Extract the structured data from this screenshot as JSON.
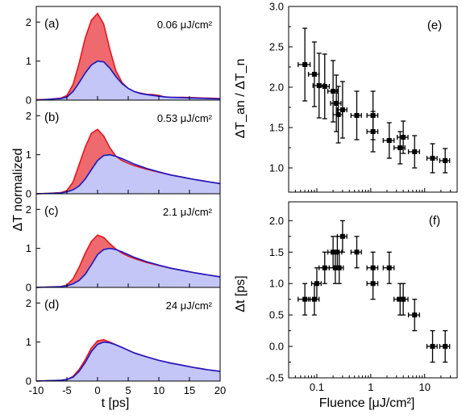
{
  "figure": {
    "left_xlabel": "t [ps]",
    "left_ylabel": "ΔT normalized",
    "right_xlabel": "Fluence [μJ/cm²]",
    "e_ylabel": "ΔT_an / ΔT_n",
    "f_ylabel": "Δt [ps]"
  },
  "colors": {
    "red_line": "#e8141b",
    "red_fill": "#ee6a6e",
    "blue_line": "#1a17c8",
    "blue_fill": "#c3c6f6"
  },
  "chart_data": [
    {
      "type": "area",
      "panel": "(a)",
      "label": "0.06 μJ/cm²",
      "xlim": [
        -10,
        20
      ],
      "ylim": [
        0,
        2.4
      ],
      "xticks": [
        -10,
        -5,
        0,
        5,
        10,
        15,
        20
      ],
      "yticks": [
        0,
        1,
        2
      ],
      "x": [
        -10,
        -8,
        -6,
        -5,
        -4,
        -3,
        -2,
        -1,
        0,
        1,
        2,
        3,
        4,
        5,
        6,
        7,
        8,
        9,
        10,
        11,
        12,
        14,
        16,
        18,
        20
      ],
      "series": [
        {
          "name": "",
          "color": "red",
          "values": [
            0.01,
            0.02,
            0.05,
            0.12,
            0.4,
            0.95,
            1.6,
            2.05,
            2.22,
            1.95,
            1.3,
            0.75,
            0.45,
            0.3,
            0.22,
            0.18,
            0.15,
            0.14,
            0.12,
            0.08,
            0.07,
            0.07,
            0.06,
            0.05,
            0.04
          ]
        },
        {
          "name": "",
          "color": "blue",
          "values": [
            0.0,
            0.02,
            0.04,
            0.08,
            0.22,
            0.45,
            0.7,
            0.9,
            1.0,
            0.98,
            0.82,
            0.6,
            0.42,
            0.3,
            0.22,
            0.17,
            0.14,
            0.12,
            0.1,
            0.08,
            0.07,
            0.06,
            0.05,
            0.04,
            0.03
          ]
        }
      ]
    },
    {
      "type": "area",
      "panel": "(b)",
      "label": "0.53 μJ/cm²",
      "xlim": [
        -10,
        20
      ],
      "ylim": [
        0,
        2.4
      ],
      "xticks": [
        -10,
        -5,
        0,
        5,
        10,
        15,
        20
      ],
      "yticks": [
        0,
        1,
        2
      ],
      "x": [
        -10,
        -8,
        -6,
        -5,
        -4,
        -3,
        -2,
        -1,
        0,
        1,
        2,
        3,
        4,
        5,
        6,
        8,
        10,
        12,
        14,
        16,
        18,
        20
      ],
      "series": [
        {
          "name": "",
          "color": "red",
          "values": [
            0.0,
            0.01,
            0.03,
            0.08,
            0.3,
            0.75,
            1.2,
            1.55,
            1.65,
            1.48,
            1.18,
            0.96,
            0.85,
            0.78,
            0.72,
            0.63,
            0.55,
            0.48,
            0.42,
            0.36,
            0.31,
            0.26
          ]
        },
        {
          "name": "",
          "color": "blue",
          "values": [
            0.0,
            0.01,
            0.02,
            0.05,
            0.1,
            0.2,
            0.38,
            0.62,
            0.85,
            0.98,
            1.0,
            0.96,
            0.9,
            0.83,
            0.76,
            0.65,
            0.56,
            0.48,
            0.42,
            0.36,
            0.31,
            0.26
          ]
        }
      ]
    },
    {
      "type": "area",
      "panel": "(c)",
      "label": "2.1 μJ/cm²",
      "xlim": [
        -10,
        20
      ],
      "ylim": [
        0,
        2.4
      ],
      "xticks": [
        -10,
        -5,
        0,
        5,
        10,
        15,
        20
      ],
      "yticks": [
        0,
        1,
        2
      ],
      "x": [
        -10,
        -8,
        -6,
        -5,
        -4,
        -3,
        -2,
        -1,
        0,
        1,
        2,
        3,
        4,
        5,
        6,
        8,
        10,
        12,
        14,
        16,
        18,
        20
      ],
      "series": [
        {
          "name": "",
          "color": "red",
          "values": [
            0.0,
            0.01,
            0.02,
            0.06,
            0.22,
            0.52,
            0.88,
            1.18,
            1.34,
            1.28,
            1.12,
            0.98,
            0.88,
            0.8,
            0.74,
            0.64,
            0.56,
            0.49,
            0.43,
            0.37,
            0.32,
            0.27
          ]
        },
        {
          "name": "",
          "color": "blue",
          "values": [
            0.0,
            0.01,
            0.02,
            0.04,
            0.09,
            0.18,
            0.34,
            0.58,
            0.84,
            0.97,
            1.0,
            0.97,
            0.91,
            0.84,
            0.77,
            0.66,
            0.57,
            0.49,
            0.43,
            0.37,
            0.32,
            0.27
          ]
        }
      ]
    },
    {
      "type": "area",
      "panel": "(d)",
      "label": "24 μJ/cm²",
      "xlim": [
        -10,
        20
      ],
      "ylim": [
        0,
        2.4
      ],
      "xticks": [
        -10,
        -5,
        0,
        5,
        10,
        15,
        20
      ],
      "yticks": [
        0,
        1,
        2
      ],
      "x": [
        -10,
        -8,
        -6,
        -5,
        -4,
        -3,
        -2,
        -1,
        0,
        1,
        2,
        3,
        4,
        5,
        6,
        8,
        10,
        12,
        14,
        16,
        18,
        20
      ],
      "series": [
        {
          "name": "",
          "color": "red",
          "values": [
            0.0,
            0.01,
            0.02,
            0.04,
            0.12,
            0.3,
            0.55,
            0.85,
            1.03,
            1.06,
            1.0,
            0.93,
            0.86,
            0.79,
            0.72,
            0.62,
            0.53,
            0.46,
            0.4,
            0.34,
            0.29,
            0.25
          ]
        },
        {
          "name": "",
          "color": "blue",
          "values": [
            0.0,
            0.01,
            0.02,
            0.04,
            0.1,
            0.25,
            0.48,
            0.76,
            0.94,
            1.0,
            0.98,
            0.93,
            0.86,
            0.79,
            0.72,
            0.62,
            0.53,
            0.46,
            0.4,
            0.34,
            0.29,
            0.25
          ]
        }
      ]
    },
    {
      "type": "scatter",
      "panel": "(e)",
      "xscale": "log",
      "xlim": [
        0.03,
        40
      ],
      "ylim": [
        0.7,
        3.0
      ],
      "xticks": [
        0.1,
        1,
        10
      ],
      "yticks": [
        1.0,
        1.5,
        2.0,
        2.5,
        3.0
      ],
      "points": [
        {
          "x": 0.06,
          "y": 2.28,
          "xerr": 0.015,
          "yerr": 0.45
        },
        {
          "x": 0.09,
          "y": 2.16,
          "xerr": 0.02,
          "yerr": 0.4
        },
        {
          "x": 0.11,
          "y": 2.02,
          "xerr": 0.025,
          "yerr": 0.4
        },
        {
          "x": 0.14,
          "y": 2.01,
          "xerr": 0.03,
          "yerr": 0.4
        },
        {
          "x": 0.2,
          "y": 1.95,
          "xerr": 0.04,
          "yerr": 0.38
        },
        {
          "x": 0.23,
          "y": 1.8,
          "xerr": 0.05,
          "yerr": 0.35
        },
        {
          "x": 0.25,
          "y": 1.66,
          "xerr": 0.05,
          "yerr": 0.35
        },
        {
          "x": 0.3,
          "y": 1.72,
          "xerr": 0.06,
          "yerr": 0.35
        },
        {
          "x": 0.55,
          "y": 1.65,
          "xerr": 0.12,
          "yerr": 0.3
        },
        {
          "x": 1.1,
          "y": 1.65,
          "xerr": 0.25,
          "yerr": 0.3
        },
        {
          "x": 1.1,
          "y": 1.45,
          "xerr": 0.25,
          "yerr": 0.25
        },
        {
          "x": 2.2,
          "y": 1.34,
          "xerr": 0.5,
          "yerr": 0.22
        },
        {
          "x": 3.5,
          "y": 1.25,
          "xerr": 0.8,
          "yerr": 0.2
        },
        {
          "x": 4.0,
          "y": 1.38,
          "xerr": 0.9,
          "yerr": 0.2
        },
        {
          "x": 6.5,
          "y": 1.2,
          "xerr": 1.5,
          "yerr": 0.2
        },
        {
          "x": 14,
          "y": 1.12,
          "xerr": 3,
          "yerr": 0.18
        },
        {
          "x": 24,
          "y": 1.09,
          "xerr": 5,
          "yerr": 0.15
        }
      ]
    },
    {
      "type": "scatter",
      "panel": "(f)",
      "xscale": "log",
      "xlim": [
        0.03,
        40
      ],
      "ylim": [
        -0.5,
        2.3
      ],
      "xticks": [
        0.1,
        1,
        10
      ],
      "yticks": [
        -0.5,
        0.0,
        0.5,
        1.0,
        1.5,
        2.0
      ],
      "points": [
        {
          "x": 0.06,
          "y": 0.75,
          "xerr": 0.015,
          "yerr": 0.25
        },
        {
          "x": 0.09,
          "y": 0.75,
          "xerr": 0.02,
          "yerr": 0.25
        },
        {
          "x": 0.1,
          "y": 1.0,
          "xerr": 0.02,
          "yerr": 0.25
        },
        {
          "x": 0.14,
          "y": 1.25,
          "xerr": 0.03,
          "yerr": 0.25
        },
        {
          "x": 0.2,
          "y": 1.5,
          "xerr": 0.04,
          "yerr": 0.25
        },
        {
          "x": 0.22,
          "y": 1.25,
          "xerr": 0.05,
          "yerr": 0.25
        },
        {
          "x": 0.24,
          "y": 1.5,
          "xerr": 0.05,
          "yerr": 0.25
        },
        {
          "x": 0.26,
          "y": 1.25,
          "xerr": 0.05,
          "yerr": 0.25
        },
        {
          "x": 0.3,
          "y": 1.75,
          "xerr": 0.06,
          "yerr": 0.25
        },
        {
          "x": 0.55,
          "y": 1.5,
          "xerr": 0.12,
          "yerr": 0.25
        },
        {
          "x": 1.1,
          "y": 1.25,
          "xerr": 0.25,
          "yerr": 0.25
        },
        {
          "x": 1.1,
          "y": 1.0,
          "xerr": 0.25,
          "yerr": 0.25
        },
        {
          "x": 2.2,
          "y": 1.25,
          "xerr": 0.5,
          "yerr": 0.25
        },
        {
          "x": 3.5,
          "y": 0.75,
          "xerr": 0.8,
          "yerr": 0.25
        },
        {
          "x": 4.0,
          "y": 0.75,
          "xerr": 0.9,
          "yerr": 0.25
        },
        {
          "x": 6.5,
          "y": 0.5,
          "xerr": 1.5,
          "yerr": 0.25
        },
        {
          "x": 14,
          "y": 0.0,
          "xerr": 3,
          "yerr": 0.25
        },
        {
          "x": 24,
          "y": 0.0,
          "xerr": 5,
          "yerr": 0.25
        }
      ]
    }
  ]
}
